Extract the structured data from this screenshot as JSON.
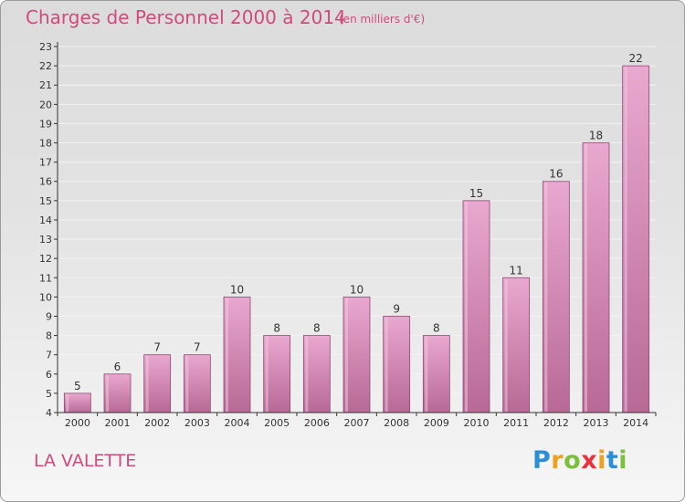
{
  "header": {
    "title": "Charges de Personnel 2000 à 2014",
    "subtitle": "(en milliers d'€)"
  },
  "footer": {
    "commune": "LA VALETTE",
    "logo_text": "Proxiti"
  },
  "colors": {
    "title": "#d04a7e",
    "bar_top": "#e9a8cf",
    "bar_bottom": "#b86996",
    "bar_border": "#8e4a73",
    "axis": "#333333",
    "grid": "#f2f2f2",
    "logo_letters": [
      "#2a8fd6",
      "#f0a020",
      "#7bbf3a",
      "#e8323c",
      "#f0a020",
      "#2a8fd6",
      "#7bbf3a"
    ]
  },
  "chart_data": {
    "type": "bar",
    "categories": [
      "2000",
      "2001",
      "2002",
      "2003",
      "2004",
      "2005",
      "2006",
      "2007",
      "2008",
      "2009",
      "2010",
      "2011",
      "2012",
      "2013",
      "2014"
    ],
    "values": [
      5,
      6,
      7,
      7,
      10,
      8,
      8,
      10,
      9,
      8,
      15,
      11,
      16,
      18,
      22
    ],
    "ylim": [
      4,
      23
    ],
    "yticks": [
      "4",
      "5",
      "6",
      "7",
      "8",
      "9",
      "10",
      "11",
      "12",
      "13",
      "14",
      "15",
      "16",
      "17",
      "18",
      "19",
      "20",
      "21",
      "22",
      "23"
    ],
    "grid": true,
    "legend": "none"
  }
}
